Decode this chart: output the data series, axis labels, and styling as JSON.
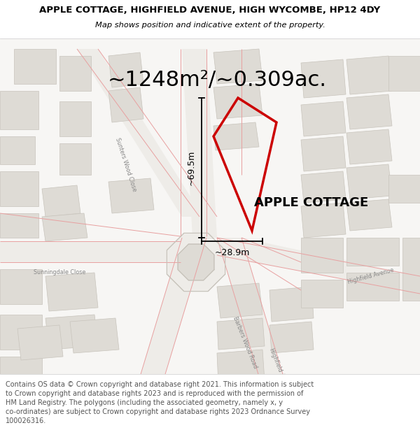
{
  "title": "APPLE COTTAGE, HIGHFIELD AVENUE, HIGH WYCOMBE, HP12 4DY",
  "subtitle": "Map shows position and indicative extent of the property.",
  "area_text": "~1248m²/~0.309ac.",
  "property_label": "APPLE COTTAGE",
  "dim_vertical": "~69.5m",
  "dim_horizontal": "~28.9m",
  "footer": "Contains OS data © Crown copyright and database right 2021. This information is subject to Crown copyright and database rights 2023 and is reproduced with the permission of HM Land Registry. The polygons (including the associated geometry, namely x, y co-ordinates) are subject to Crown copyright and database rights 2023 Ordnance Survey 100026316.",
  "bg_color": "#f7f6f4",
  "road_fill": "#eeece8",
  "building_fill": "#dedbd5",
  "building_edge": "#c8c4bc",
  "road_line_color": "#e8a0a0",
  "highlight_color": "#cc0000",
  "text_color": "#555555",
  "title_fontsize": 9.5,
  "subtitle_fontsize": 8.2,
  "area_fontsize": 22,
  "label_fontsize": 13,
  "dim_fontsize": 9,
  "footer_fontsize": 7.0,
  "street_label_fontsize": 5.8,
  "street_label_color": "#888888"
}
